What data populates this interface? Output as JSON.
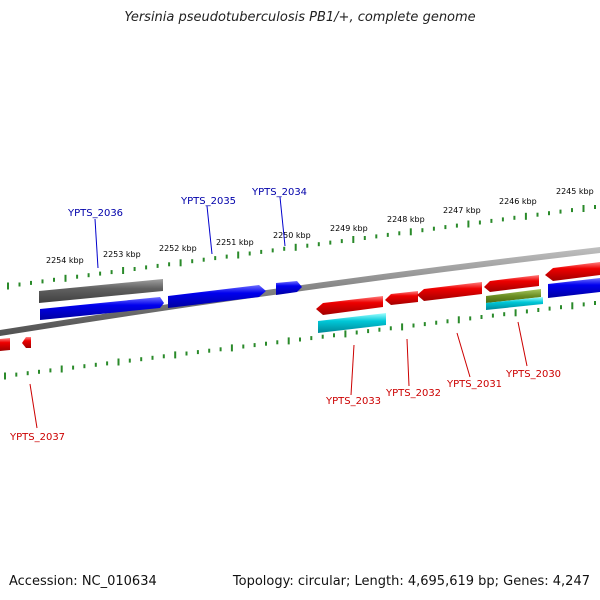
{
  "title": "Yersinia pseudotuberculosis PB1/+, complete genome",
  "footer": {
    "accession": "Accession: NC_010634",
    "topology": "Topology: circular; Length: 4,695,619 bp; Genes: 4,247"
  },
  "scale_labels": [
    "2245 kbp",
    "2246 kbp",
    "2247 kbp",
    "2248 kbp",
    "2249 kbp",
    "2250 kbp",
    "2251 kbp",
    "2252 kbp",
    "2253 kbp",
    "2254 kbp"
  ],
  "gene_labels": {
    "forward": [
      "YPTS_2036",
      "YPTS_2035",
      "YPTS_2034"
    ],
    "reverse": [
      "YPTS_2033",
      "YPTS_2032",
      "YPTS_2031",
      "YPTS_2030",
      "YPTS_2037"
    ]
  },
  "colors": {
    "forward_gene": "#0000ee",
    "reverse_gene": "#ee0000",
    "pseudo_gene": "#606060",
    "rna_feature": "#00c8d8",
    "other_feature": "#6b8e23",
    "backbone": "#808080",
    "tick": "#2a8a2a",
    "forward_label": "#0000aa",
    "reverse_label": "#cc0000"
  }
}
